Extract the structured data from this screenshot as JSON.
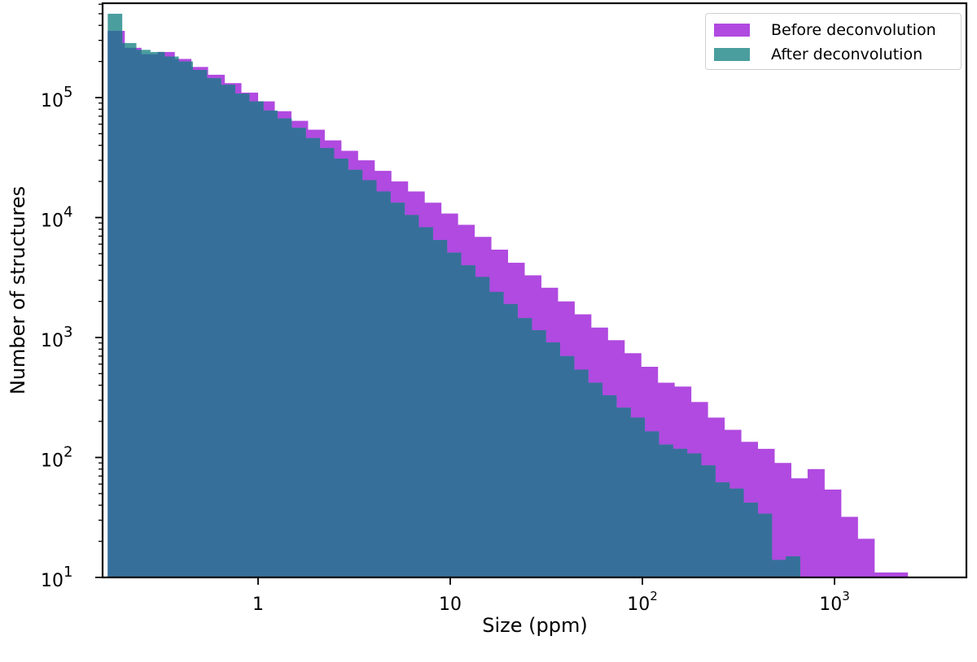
{
  "colors": {
    "before": "#b04ae0",
    "after": "#4a9e9e",
    "overlap": "#36709a",
    "axis": "#000000",
    "background": "#ffffff"
  },
  "legend": {
    "items": [
      {
        "label": "Before deconvolution",
        "color": "#b04ae0"
      },
      {
        "label": "After deconvolution",
        "color": "#4a9e9e"
      }
    ]
  },
  "chart_data": {
    "type": "bar",
    "subtype": "histogram-overlay",
    "title": "",
    "xlabel": "Size (ppm)",
    "ylabel": "Number of structures",
    "xscale": "log",
    "yscale": "log",
    "xlim": [
      0.15,
      5000
    ],
    "ylim": [
      10,
      550000
    ],
    "grid": false,
    "legend_position": "upper right",
    "x_ticks": [
      {
        "value": 1,
        "label": "1"
      },
      {
        "value": 10,
        "label": "10"
      },
      {
        "value": 100,
        "label": "10^2"
      },
      {
        "value": 1000,
        "label": "10^3"
      }
    ],
    "y_ticks": [
      {
        "value": 10,
        "label": "10^1"
      },
      {
        "value": 100,
        "label": "10^2"
      },
      {
        "value": 1000,
        "label": "10^3"
      },
      {
        "value": 10000,
        "label": "10^4"
      },
      {
        "value": 100000,
        "label": "10^5"
      }
    ],
    "series": [
      {
        "name": "Before deconvolution",
        "color": "#b04ae0",
        "bin_start": 0.165,
        "bin_end": 2400,
        "counts": [
          360000,
          260000,
          230000,
          240000,
          210000,
          180000,
          155000,
          132000,
          110000,
          93000,
          77000,
          64000,
          54000,
          44000,
          36000,
          30000,
          24500,
          20000,
          16500,
          13300,
          10800,
          8700,
          6900,
          5400,
          4200,
          3300,
          2600,
          2000,
          1560,
          1210,
          950,
          740,
          570,
          420,
          390,
          290,
          215,
          170,
          135,
          118,
          90,
          67,
          80,
          54,
          32,
          21,
          11,
          11
        ]
      },
      {
        "name": "After deconvolution",
        "color": "#4a9e9e",
        "bin_start": 0.165,
        "bin_end": 660,
        "counts": [
          500000,
          285000,
          250000,
          240000,
          220000,
          200000,
          170000,
          145000,
          128000,
          108000,
          93000,
          78000,
          67000,
          56000,
          46000,
          38000,
          31000,
          25000,
          20500,
          16500,
          13300,
          10500,
          8300,
          6500,
          5100,
          4000,
          3200,
          2400,
          1900,
          1450,
          1150,
          910,
          700,
          540,
          420,
          330,
          260,
          215,
          165,
          128,
          118,
          108,
          86,
          62,
          55,
          42,
          34,
          14,
          15
        ]
      }
    ]
  }
}
